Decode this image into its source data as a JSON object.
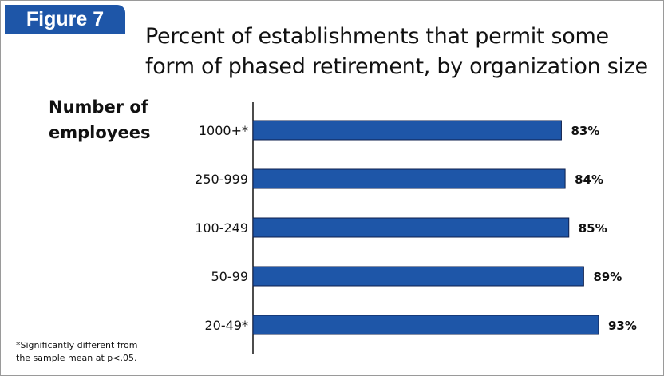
{
  "figure_label": "Figure 7",
  "footnote": [
    "*Significantly different from",
    "the sample mean at p<.05."
  ],
  "colors": {
    "bar": "#1e56a8",
    "bar_edge": "#0d1f4d",
    "tab": "#1e56a8"
  },
  "chart_data": {
    "type": "bar",
    "orientation": "horizontal",
    "title": [
      "Percent of establishments that permit some",
      "form of phased retirement, by organization size"
    ],
    "ylabel": [
      "Number of",
      "employees"
    ],
    "categories": [
      "1000+*",
      "250-999",
      "100-249",
      "50-99",
      "20-49*"
    ],
    "values": [
      83,
      84,
      85,
      89,
      93
    ],
    "value_labels": [
      "83%",
      "84%",
      "85%",
      "89%",
      "93%"
    ],
    "xlim": [
      0,
      100
    ],
    "grid": false
  }
}
